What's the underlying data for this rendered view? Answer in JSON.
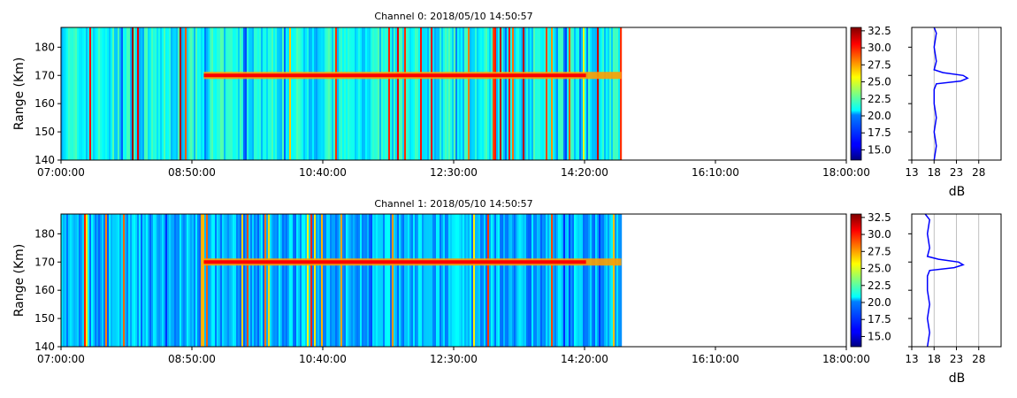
{
  "chart_data": [
    {
      "type": "heatmap",
      "title": "Channel 0: 2018/05/10 14:50:57",
      "ylabel": "Range (Km)",
      "xlabel": "",
      "x_ticks": [
        "07:00:00",
        "08:50:00",
        "10:40:00",
        "12:30:00",
        "14:20:00",
        "16:10:00",
        "18:00:00"
      ],
      "x_range": [
        "07:00:00",
        "18:00:00"
      ],
      "data_end_time": "14:50:57",
      "ylim": [
        140,
        187
      ],
      "y_ticks": [
        140,
        150,
        160,
        170,
        180
      ],
      "band_range_km": 170,
      "band_start_time": "09:00:00",
      "colorbar": {
        "ticks": [
          "15.0",
          "17.5",
          "20.0",
          "22.5",
          "25.0",
          "27.5",
          "30.0",
          "32.5"
        ],
        "range": [
          13.5,
          33.0
        ],
        "colormap": "jet"
      },
      "profile": {
        "type": "line",
        "xlabel": "dB",
        "x_ticks": [
          "13",
          "18",
          "23",
          "28"
        ],
        "xlim": [
          13,
          33
        ],
        "color": "#0000ff",
        "grid": "vertical",
        "points": [
          [
            18,
            140
          ],
          [
            18.5,
            145
          ],
          [
            18,
            150
          ],
          [
            18.5,
            155
          ],
          [
            18,
            160
          ],
          [
            18,
            165
          ],
          [
            18.5,
            167
          ],
          [
            24,
            168
          ],
          [
            25.5,
            169
          ],
          [
            24.5,
            170
          ],
          [
            20,
            171
          ],
          [
            18,
            172
          ],
          [
            18.5,
            175
          ],
          [
            18,
            180
          ],
          [
            18.5,
            185
          ],
          [
            18,
            187
          ]
        ]
      }
    },
    {
      "type": "heatmap",
      "title": "Channel 1: 2018/05/10 14:50:57",
      "ylabel": "Range (Km)",
      "xlabel": "",
      "x_ticks": [
        "07:00:00",
        "08:50:00",
        "10:40:00",
        "12:30:00",
        "14:20:00",
        "16:10:00",
        "18:00:00"
      ],
      "x_range": [
        "07:00:00",
        "18:00:00"
      ],
      "data_end_time": "14:50:57",
      "ylim": [
        140,
        187
      ],
      "y_ticks": [
        140,
        150,
        160,
        170,
        180
      ],
      "band_range_km": 170,
      "band_start_time": "09:00:00",
      "colorbar": {
        "ticks": [
          "15.0",
          "17.5",
          "20.0",
          "22.5",
          "25.0",
          "27.5",
          "30.0",
          "32.5"
        ],
        "range": [
          13.5,
          33.0
        ],
        "colormap": "jet"
      },
      "profile": {
        "type": "line",
        "xlabel": "dB",
        "x_ticks": [
          "13",
          "18",
          "23",
          "28"
        ],
        "xlim": [
          13,
          33
        ],
        "color": "#0000ff",
        "grid": "vertical",
        "points": [
          [
            16.5,
            140
          ],
          [
            17,
            145
          ],
          [
            16.5,
            150
          ],
          [
            17,
            155
          ],
          [
            16.5,
            160
          ],
          [
            16.5,
            165
          ],
          [
            17,
            167
          ],
          [
            22.5,
            168
          ],
          [
            24.5,
            169
          ],
          [
            23.5,
            170
          ],
          [
            19,
            171
          ],
          [
            16.5,
            172
          ],
          [
            17,
            175
          ],
          [
            16.5,
            180
          ],
          [
            17,
            185
          ],
          [
            16,
            187
          ]
        ]
      }
    }
  ]
}
